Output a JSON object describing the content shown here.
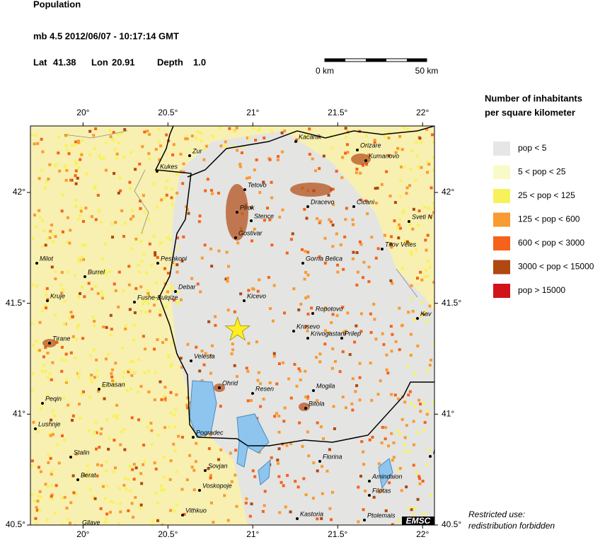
{
  "header": {
    "title": "Population",
    "event": "mb 4.5  2012/06/07 - 10:17:14 GMT",
    "lat": {
      "label": "Lat",
      "value": 41.38
    },
    "lon": {
      "label": "Lon",
      "value": 20.91
    },
    "depth": {
      "label": "Depth",
      "value": 1.0,
      "text": "1.0"
    }
  },
  "scale": {
    "start": "0 km",
    "end": "50 km"
  },
  "map": {
    "xlim": [
      19.69,
      22.07
    ],
    "ylim": [
      40.5,
      42.3
    ],
    "xticks": [
      {
        "value": 20,
        "label": "20°"
      },
      {
        "value": 20.5,
        "label": "20.5°"
      },
      {
        "value": 21,
        "label": "21°"
      },
      {
        "value": 21.5,
        "label": "21.5°"
      },
      {
        "value": 22,
        "label": "22°"
      }
    ],
    "yticks": [
      {
        "value": 40.5,
        "label": "40.5°"
      },
      {
        "value": 41,
        "label": "41°"
      },
      {
        "value": 41.5,
        "label": "41.5°"
      },
      {
        "value": 42,
        "label": "42°"
      }
    ],
    "cities": [
      "Kacanik",
      "Orizare",
      "Kumanovo",
      "Zur",
      "Kukes",
      "Tetovo",
      "Dracevo",
      "Cicani",
      "Pirok",
      "Stence",
      "Sveti N",
      "Gostivar",
      "Titov Veles",
      "Milot",
      "Peshkopi",
      "Gorna Belica",
      "Burrel",
      "Debar",
      "Kruje",
      "Fushe-Bulqize",
      "Kicevo",
      "Ropotovo",
      "Kav",
      "Krusevo",
      "Krivogastani",
      "Prilep",
      "Tirane",
      "Velesta",
      "Ohrid",
      "Elbasan",
      "Resen",
      "Mogila",
      "Peqin",
      "Bitola",
      "Lushnje",
      "Pogradec",
      "Stalin",
      "Florina",
      "B",
      "Sovjan",
      "Amindaion",
      "Berat",
      "Voskopoje",
      "Filotas",
      "Vithkuo",
      "Ptolemais",
      "Kastoria",
      "Gllave"
    ],
    "badge": "EMSC"
  },
  "legend": {
    "title": [
      "Number of inhabitants",
      "per square kilometer"
    ],
    "entries": [
      {
        "label": "pop < 5",
        "color": "#e6e6e6"
      },
      {
        "label": "5 < pop < 25",
        "color": "#fafac8"
      },
      {
        "label": "25 < pop < 125",
        "color": "#f8f25a"
      },
      {
        "label": "125 < pop < 600",
        "color": "#f99a32"
      },
      {
        "label": "600 < pop < 3000",
        "color": "#f6621a"
      },
      {
        "label": "3000 < pop < 15000",
        "color": "#b04812"
      },
      {
        "label": "pop > 15000",
        "color": "#d2141a"
      }
    ]
  },
  "notice": [
    "Restricted use:",
    "redistribution forbidden"
  ]
}
